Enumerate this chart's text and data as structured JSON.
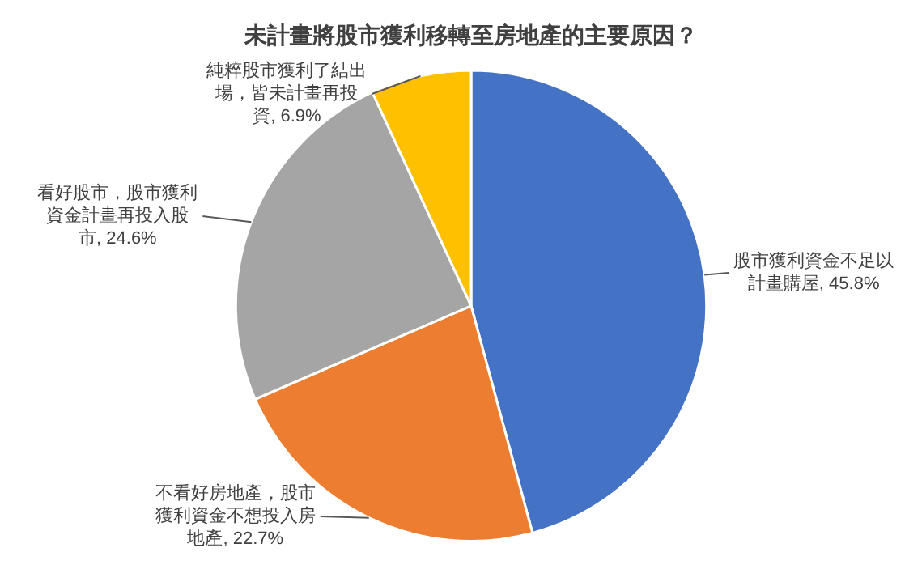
{
  "chart_data": {
    "type": "pie",
    "title": "未計畫將股市獲利移轉至房地產的主要原因？",
    "categories": [
      "股市獲利資金不足以計畫購屋",
      "不看好房地產，股市獲利資金不想投入房地產",
      "看好股市，股市獲利資金計畫再投入股市",
      "純粹股市獲利了結出場，皆未計畫再投資"
    ],
    "values": [
      45.8,
      22.7,
      24.6,
      6.9
    ],
    "value_labels": [
      "45.8%",
      "22.7%",
      "24.6%",
      "6.9%"
    ],
    "colors": [
      "#4472c4",
      "#ed7d31",
      "#a5a5a5",
      "#ffc000"
    ],
    "legend": false
  }
}
